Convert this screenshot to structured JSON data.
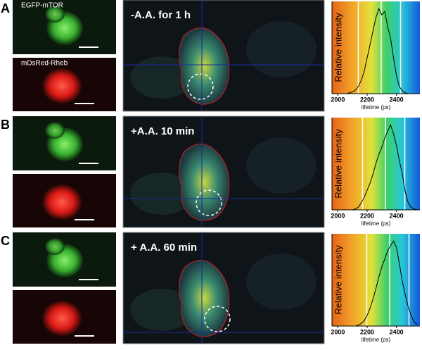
{
  "panels": [
    {
      "label": "A",
      "image_labels": [
        "EGFP-mTOR",
        "mDsRed-Rheb"
      ],
      "condition": "-A.A. for 1 h"
    },
    {
      "label": "B",
      "condition": "+A.A. 10 min"
    },
    {
      "label": "C",
      "condition": "+ A.A. 60 min"
    }
  ],
  "chart_data": [
    {
      "type": "line",
      "ylabel": "Relative intensity",
      "xlabel": "lifetime (ps)",
      "xlim": [
        1960,
        2560
      ],
      "xticks": [
        2000,
        2200,
        2400
      ],
      "ylim": [
        0,
        100
      ],
      "color": "#000000",
      "x": [
        2000,
        2020,
        2040,
        2060,
        2080,
        2100,
        2120,
        2140,
        2160,
        2180,
        2200,
        2220,
        2240,
        2260,
        2280,
        2300,
        2320,
        2340,
        2360,
        2380,
        2400,
        2420,
        2440,
        2460,
        2480,
        2500,
        2520,
        2540
      ],
      "values": [
        0,
        0,
        0,
        0,
        1,
        2,
        4,
        8,
        15,
        25,
        40,
        55,
        70,
        85,
        95,
        88,
        92,
        75,
        62,
        40,
        20,
        8,
        3,
        1,
        0,
        0,
        0,
        0
      ]
    },
    {
      "type": "line",
      "ylabel": "Relative intensity",
      "xlabel": "lifetime (ps)",
      "xlim": [
        1960,
        2560
      ],
      "xticks": [
        2000,
        2200,
        2400
      ],
      "ylim": [
        0,
        100
      ],
      "color": "#000000",
      "x": [
        2000,
        2020,
        2040,
        2060,
        2080,
        2100,
        2120,
        2140,
        2160,
        2180,
        2200,
        2220,
        2240,
        2260,
        2280,
        2300,
        2320,
        2340,
        2360,
        2380,
        2400,
        2420,
        2440,
        2460,
        2480,
        2500,
        2520,
        2540
      ],
      "values": [
        0,
        0,
        0,
        0,
        0,
        0,
        1,
        3,
        8,
        14,
        22,
        30,
        40,
        52,
        62,
        70,
        80,
        88,
        95,
        85,
        72,
        55,
        40,
        20,
        8,
        3,
        1,
        0
      ]
    },
    {
      "type": "line",
      "ylabel": "Relative intensity",
      "xlabel": "lifetime (ps)",
      "xlim": [
        1960,
        2560
      ],
      "xticks": [
        2000,
        2200,
        2400
      ],
      "ylim": [
        0,
        100
      ],
      "color": "#000000",
      "x": [
        2000,
        2020,
        2040,
        2060,
        2080,
        2100,
        2120,
        2140,
        2160,
        2180,
        2200,
        2220,
        2240,
        2260,
        2280,
        2300,
        2320,
        2340,
        2360,
        2380,
        2400,
        2420,
        2440,
        2460,
        2480,
        2500,
        2520,
        2540
      ],
      "values": [
        0,
        0,
        0,
        0,
        0,
        0,
        0,
        1,
        3,
        6,
        12,
        20,
        30,
        42,
        55,
        66,
        75,
        84,
        90,
        95,
        88,
        70,
        50,
        35,
        22,
        12,
        5,
        2
      ]
    }
  ]
}
